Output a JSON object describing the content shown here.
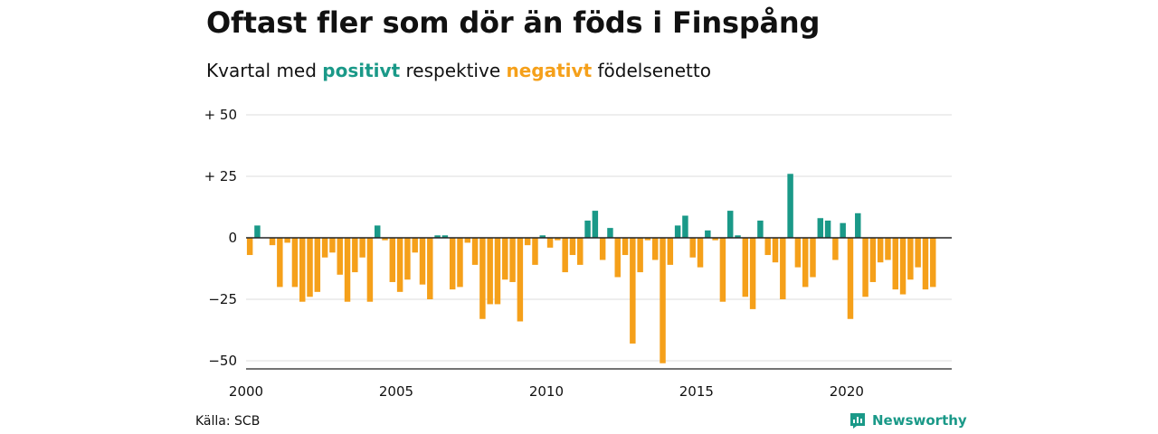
{
  "title": "Oftast fler som dör än föds i Finspång",
  "subtitle": {
    "prefix": "Kvartal med",
    "positive": "positivt",
    "middle": "respektive",
    "negative": "negativt",
    "suffix": "födelsenetto"
  },
  "source": "Källa: SCB",
  "brand": "Newsworthy",
  "colors": {
    "positive": "#1a9988",
    "negative": "#f5a01a",
    "grid": "#dddddd",
    "axis": "#222222"
  },
  "chart_data": {
    "type": "bar",
    "xlabel": "",
    "ylabel": "",
    "ylim": [
      -55,
      50
    ],
    "yticks": [
      {
        "value": 50,
        "label": "+ 50"
      },
      {
        "value": 25,
        "label": "+ 25"
      },
      {
        "value": 0,
        "label": "0"
      },
      {
        "value": -25,
        "label": "−25"
      },
      {
        "value": -50,
        "label": "−50"
      }
    ],
    "xticks": [
      {
        "value": 2000,
        "label": "2000"
      },
      {
        "value": 2005,
        "label": "2005"
      },
      {
        "value": 2010,
        "label": "2010"
      },
      {
        "value": 2015,
        "label": "2015"
      },
      {
        "value": 2020,
        "label": "2020"
      }
    ],
    "grid": true,
    "start": "2000 Q1",
    "values": [
      -7,
      5,
      0,
      -3,
      -20,
      -2,
      -20,
      -26,
      -24,
      -22,
      -8,
      -6,
      -15,
      -26,
      -14,
      -8,
      -26,
      5,
      -1,
      -18,
      -22,
      -17,
      -6,
      -19,
      -25,
      1,
      1,
      -21,
      -20,
      -2,
      -11,
      -33,
      -27,
      -27,
      -17,
      -18,
      -34,
      -3,
      -11,
      1,
      -4,
      -1,
      -14,
      -7,
      -11,
      7,
      11,
      -9,
      4,
      -16,
      -7,
      -43,
      -14,
      -1,
      -9,
      -51,
      -11,
      5,
      9,
      -8,
      -12,
      3,
      -1,
      -26,
      11,
      1,
      -24,
      -29,
      7,
      -7,
      -10,
      -25,
      26,
      -12,
      -20,
      -16,
      8,
      7,
      -9,
      6,
      -33,
      10,
      -24,
      -18,
      -10,
      -9,
      -21,
      -23,
      -17,
      -12,
      -21,
      -20
    ]
  }
}
